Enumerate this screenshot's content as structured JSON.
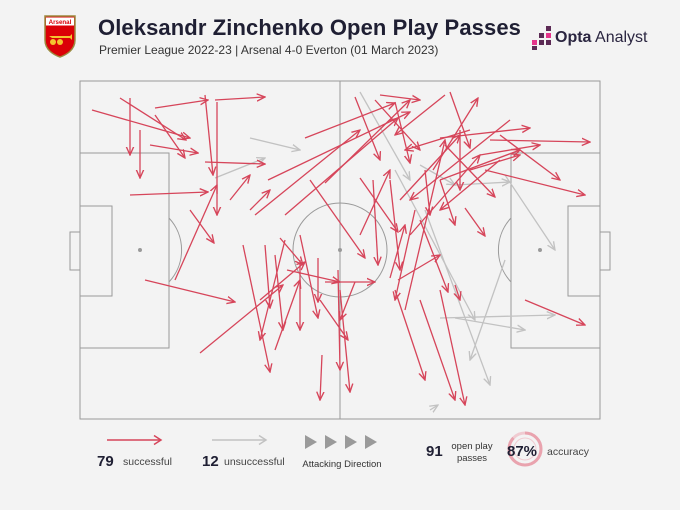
{
  "header": {
    "title": "Oleksandr Zinchenko Open Play Passes",
    "subtitle": "Premier League 2022-23 | Arsenal 4-0 Everton (01 March 2023)",
    "club": "Arsenal",
    "brand_opta": "Opta",
    "brand_analyst": "Analyst"
  },
  "colors": {
    "successful": "#d6455a",
    "unsuccessful": "#c2c2c2",
    "pitch_line": "#9a9a9a",
    "title": "#1f1f33"
  },
  "legend": {
    "successful_count": "79",
    "successful_label": "successful",
    "unsuccessful_count": "12",
    "unsuccessful_label": "unsuccessful",
    "direction_label": "Attacking Direction",
    "total_count": "91",
    "total_label_line1": "open play",
    "total_label_line2": "passes",
    "accuracy_value": "87%",
    "accuracy_label": "accuracy",
    "accuracy_fraction": 0.87
  },
  "passes": {
    "successful": [
      [
        120,
        98,
        186,
        140
      ],
      [
        92,
        110,
        190,
        138
      ],
      [
        130,
        98,
        130,
        155
      ],
      [
        140,
        130,
        140,
        178
      ],
      [
        155,
        115,
        185,
        158
      ],
      [
        155,
        108,
        208,
        100
      ],
      [
        150,
        145,
        198,
        153
      ],
      [
        205,
        95,
        213,
        175
      ],
      [
        215,
        100,
        265,
        97
      ],
      [
        217,
        102,
        217,
        215
      ],
      [
        205,
        162,
        265,
        164
      ],
      [
        130,
        195,
        208,
        192
      ],
      [
        145,
        280,
        235,
        302
      ],
      [
        175,
        280,
        217,
        185
      ],
      [
        190,
        210,
        214,
        243
      ],
      [
        200,
        353,
        283,
        285
      ],
      [
        255,
        215,
        360,
        130
      ],
      [
        305,
        138,
        395,
        103
      ],
      [
        268,
        180,
        410,
        112
      ],
      [
        285,
        215,
        398,
        118
      ],
      [
        325,
        183,
        410,
        100
      ],
      [
        310,
        180,
        365,
        258
      ],
      [
        355,
        97,
        380,
        160
      ],
      [
        375,
        100,
        420,
        150
      ],
      [
        395,
        102,
        410,
        163
      ],
      [
        300,
        235,
        318,
        318
      ],
      [
        280,
        238,
        303,
        265
      ],
      [
        287,
        270,
        340,
        282
      ],
      [
        243,
        245,
        270,
        372
      ],
      [
        265,
        245,
        270,
        308
      ],
      [
        275,
        255,
        283,
        330
      ],
      [
        300,
        260,
        300,
        330
      ],
      [
        318,
        258,
        318,
        302
      ],
      [
        320,
        300,
        348,
        340
      ],
      [
        322,
        355,
        320,
        400
      ],
      [
        338,
        270,
        340,
        370
      ],
      [
        325,
        282,
        375,
        282
      ],
      [
        340,
        290,
        350,
        392
      ],
      [
        373,
        180,
        378,
        265
      ],
      [
        390,
        180,
        400,
        270
      ],
      [
        360,
        178,
        398,
        232
      ],
      [
        400,
        200,
        460,
        135
      ],
      [
        410,
        235,
        480,
        155
      ],
      [
        425,
        170,
        430,
        215
      ],
      [
        433,
        170,
        478,
        98
      ],
      [
        440,
        138,
        530,
        128
      ],
      [
        445,
        145,
        495,
        197
      ],
      [
        450,
        92,
        470,
        148
      ],
      [
        460,
        130,
        460,
        190
      ],
      [
        390,
        278,
        405,
        225
      ],
      [
        405,
        310,
        445,
        140
      ],
      [
        420,
        220,
        448,
        292
      ],
      [
        440,
        180,
        455,
        225
      ],
      [
        420,
        300,
        455,
        400
      ],
      [
        440,
        290,
        465,
        405
      ],
      [
        455,
        285,
        460,
        300
      ],
      [
        395,
        290,
        425,
        380
      ],
      [
        470,
        170,
        520,
        155
      ],
      [
        485,
        170,
        585,
        195
      ],
      [
        490,
        140,
        590,
        142
      ],
      [
        500,
        135,
        560,
        180
      ],
      [
        500,
        160,
        440,
        210
      ],
      [
        510,
        120,
        410,
        200
      ],
      [
        525,
        300,
        585,
        325
      ],
      [
        440,
        180,
        520,
        150
      ],
      [
        480,
        155,
        540,
        145
      ],
      [
        398,
        280,
        440,
        255
      ],
      [
        380,
        95,
        420,
        100
      ],
      [
        285,
        240,
        260,
        340
      ],
      [
        260,
        300,
        305,
        262
      ],
      [
        250,
        210,
        270,
        190
      ],
      [
        230,
        200,
        250,
        175
      ],
      [
        415,
        210,
        395,
        300
      ],
      [
        465,
        208,
        485,
        236
      ],
      [
        355,
        282,
        340,
        320
      ],
      [
        445,
        95,
        395,
        135
      ],
      [
        360,
        235,
        390,
        170
      ],
      [
        470,
        130,
        405,
        150
      ],
      [
        275,
        350,
        300,
        280
      ]
    ],
    "unsuccessful": [
      [
        250,
        138,
        300,
        150
      ],
      [
        215,
        178,
        265,
        158
      ],
      [
        360,
        92,
        410,
        180
      ],
      [
        395,
        170,
        475,
        320
      ],
      [
        425,
        210,
        490,
        385
      ],
      [
        505,
        260,
        470,
        360
      ],
      [
        440,
        318,
        555,
        315
      ],
      [
        455,
        318,
        525,
        330
      ],
      [
        505,
        175,
        555,
        250
      ],
      [
        455,
        185,
        510,
        182
      ],
      [
        430,
        410,
        438,
        405
      ],
      [
        420,
        165,
        455,
        185
      ]
    ]
  }
}
